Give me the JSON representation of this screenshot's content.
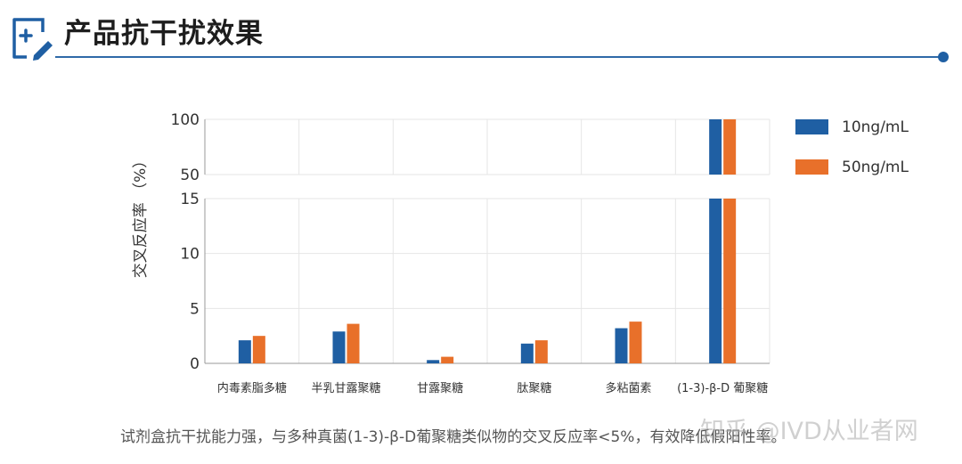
{
  "header": {
    "title": "产品抗干扰效果",
    "icon": "edit-document-icon",
    "accent_color": "#1f5fa3"
  },
  "chart_data": {
    "type": "bar",
    "ylabel": "交叉反应率 （%）",
    "xlabel": "",
    "y_axis_break": true,
    "ylim_lower": [
      0,
      15
    ],
    "ylim_upper": [
      50,
      100
    ],
    "yticks_lower": [
      "0",
      "5",
      "10",
      "15"
    ],
    "yticks_upper": [
      "50",
      "100"
    ],
    "categories": [
      "内毒素脂多糖",
      "半乳甘露聚糖",
      "甘露聚糖",
      "肽聚糖",
      "多粘菌素",
      "(1-3)-β-D 葡聚糖"
    ],
    "series": [
      {
        "name": "10ng/mL",
        "color": "#1f5fa3",
        "values": [
          2.1,
          2.9,
          0.3,
          1.8,
          3.2,
          100
        ]
      },
      {
        "name": "50ng/mL",
        "color": "#e8702a",
        "values": [
          2.5,
          3.6,
          0.6,
          2.1,
          3.8,
          100
        ]
      }
    ],
    "grid": true,
    "legend_position": "right"
  },
  "caption": "试剂盒抗干扰能力强，与多种真菌(1-3)-β-D葡聚糖类似物的交叉反应率<5%，有效降低假阳性率。",
  "watermark": "知乎 @IVD从业者网"
}
